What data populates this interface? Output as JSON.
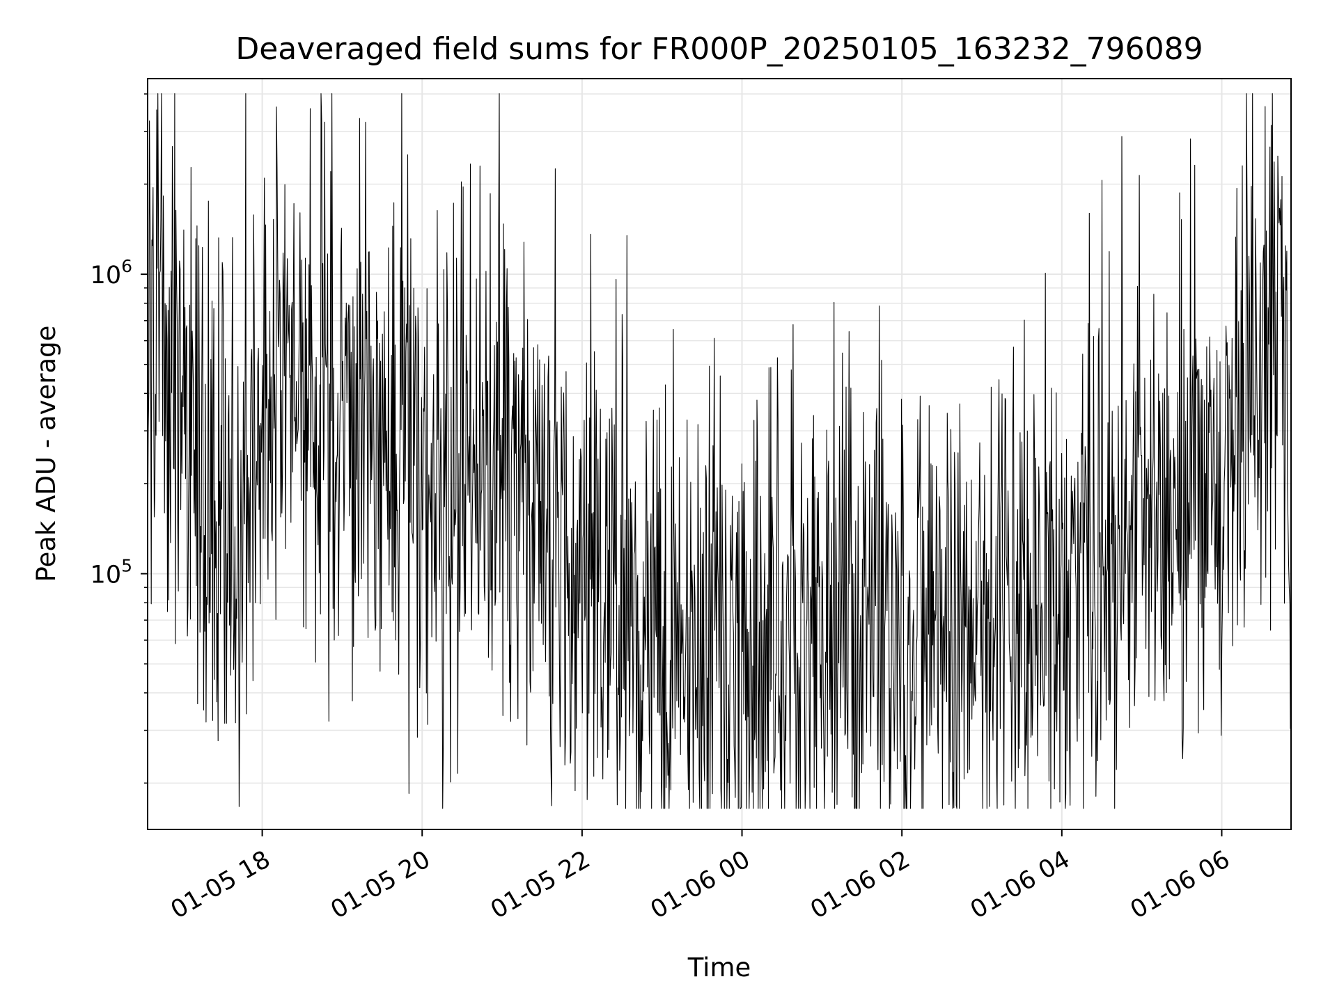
{
  "chart_data": {
    "type": "line",
    "title": "Deaveraged field sums for FR000P_20250105_163232_796089",
    "xlabel": "Time",
    "ylabel": "Peak ADU - average",
    "yscale": "log",
    "ylim": [
      14000,
      4500000
    ],
    "xlim": [
      "2025-01-05 16:34",
      "2025-01-06 06:52"
    ],
    "x_ticks": [
      "01-05 18",
      "01-05 20",
      "01-05 22",
      "01-06 00",
      "01-06 02",
      "01-06 04",
      "01-06 06"
    ],
    "y_ticks": [
      {
        "base": "10",
        "exp": "5",
        "value": 100000
      },
      {
        "base": "10",
        "exp": "6",
        "value": 1000000
      }
    ],
    "grid": true,
    "line_color": "#000000",
    "series": [
      {
        "x": [
          "2025-01-05 16:34",
          "2025-01-05 16:45",
          "2025-01-05 17:00",
          "2025-01-05 17:15",
          "2025-01-05 17:30",
          "2025-01-05 17:45",
          "2025-01-05 18:00",
          "2025-01-05 18:15",
          "2025-01-05 18:30",
          "2025-01-05 18:45",
          "2025-01-05 19:00",
          "2025-01-05 19:15",
          "2025-01-05 19:30",
          "2025-01-05 19:45",
          "2025-01-05 20:00",
          "2025-01-05 20:15",
          "2025-01-05 20:30",
          "2025-01-05 20:45",
          "2025-01-05 21:00",
          "2025-01-05 21:15",
          "2025-01-05 21:30",
          "2025-01-05 21:45",
          "2025-01-05 22:00",
          "2025-01-05 22:15",
          "2025-01-05 22:30",
          "2025-01-05 22:45",
          "2025-01-05 23:00",
          "2025-01-05 23:15",
          "2025-01-05 23:30",
          "2025-01-05 23:45",
          "2025-01-06 00:00",
          "2025-01-06 00:15",
          "2025-01-06 00:30",
          "2025-01-06 00:45",
          "2025-01-06 01:00",
          "2025-01-06 01:15",
          "2025-01-06 01:30",
          "2025-01-06 01:45",
          "2025-01-06 02:00",
          "2025-01-06 02:15",
          "2025-01-06 02:30",
          "2025-01-06 02:45",
          "2025-01-06 03:00",
          "2025-01-06 03:15",
          "2025-01-06 03:30",
          "2025-01-06 03:45",
          "2025-01-06 04:00",
          "2025-01-06 04:15",
          "2025-01-06 04:30",
          "2025-01-06 04:45",
          "2025-01-06 05:00",
          "2025-01-06 05:15",
          "2025-01-06 05:30",
          "2025-01-06 05:45",
          "2025-01-06 06:00",
          "2025-01-06 06:15",
          "2025-01-06 06:30",
          "2025-01-06 06:45",
          "2025-01-06 06:52"
        ],
        "y": [
          800000,
          700000,
          300000,
          220000,
          170000,
          180000,
          280000,
          480000,
          420000,
          400000,
          350000,
          330000,
          320000,
          420000,
          220000,
          170000,
          190000,
          240000,
          200000,
          170000,
          130000,
          110000,
          100000,
          80000,
          65000,
          62000,
          60000,
          60000,
          58000,
          57000,
          60000,
          58000,
          56000,
          60000,
          57000,
          56000,
          56000,
          57000,
          58000,
          58000,
          60000,
          63000,
          68000,
          72000,
          75000,
          78000,
          80000,
          85000,
          95000,
          110000,
          125000,
          150000,
          170000,
          200000,
          240000,
          310000,
          700000,
          1000000,
          150000
        ]
      }
    ]
  }
}
